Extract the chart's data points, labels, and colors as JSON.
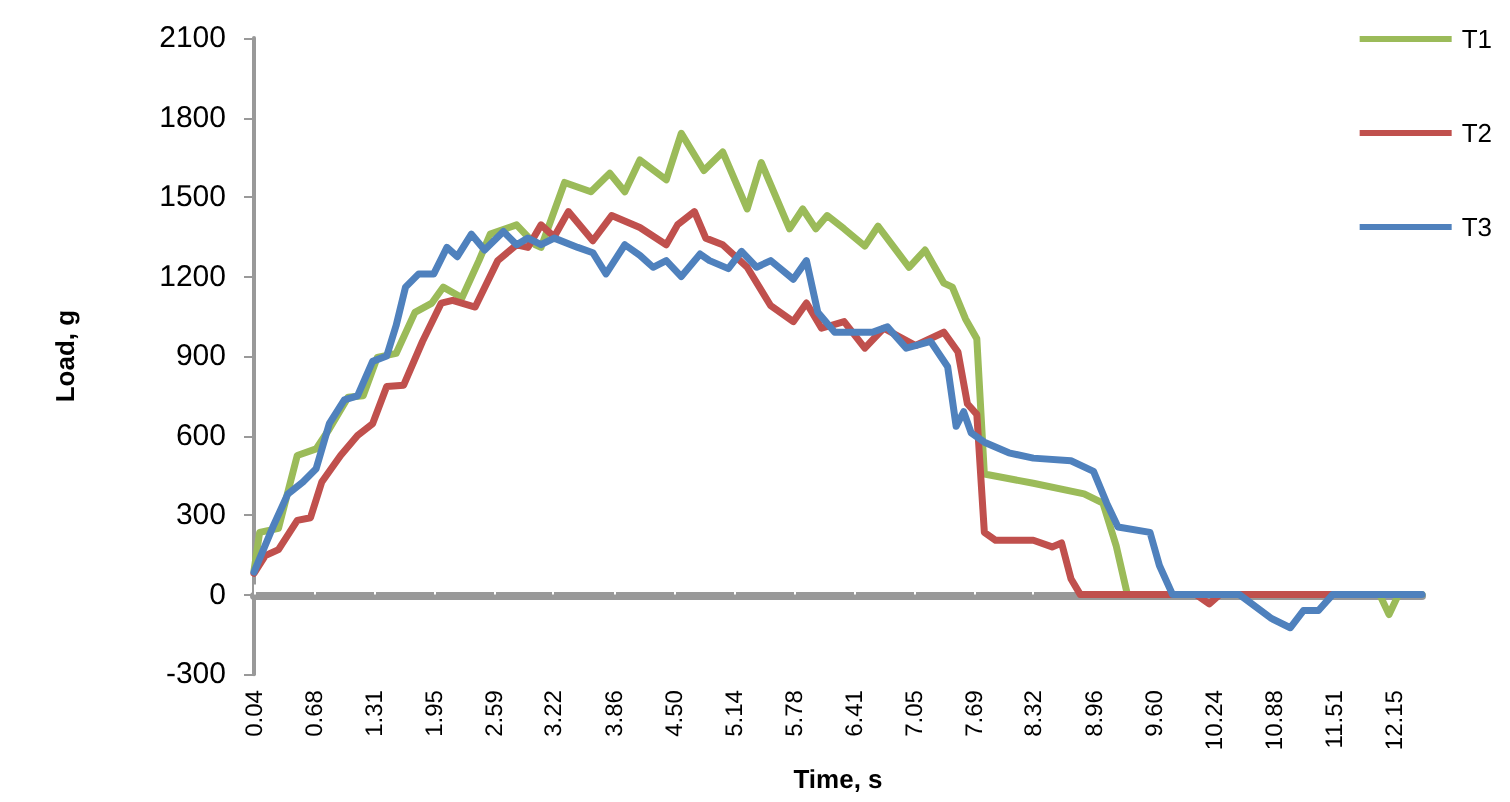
{
  "chart_data": {
    "type": "line",
    "xlabel": "Time, s",
    "ylabel": "Load, g",
    "xlim": [
      0.04,
      12.45
    ],
    "ylim": [
      -300,
      2100
    ],
    "xticks": [
      0.04,
      0.68,
      1.31,
      1.95,
      2.59,
      3.22,
      3.86,
      {
        "value": 4.5,
        "label": "4.50"
      },
      5.14,
      5.78,
      6.41,
      7.05,
      7.69,
      8.32,
      8.96,
      {
        "value": 9.6,
        "label": "9.60"
      },
      10.24,
      10.88,
      11.51,
      12.15
    ],
    "yticks": [
      -300,
      0,
      300,
      600,
      900,
      1200,
      1500,
      1800,
      2100
    ],
    "legend": "right",
    "marker": "none",
    "line_style": "solid",
    "series": [
      {
        "name": "T1",
        "color": "#9bbb59",
        "x": [
          0.04,
          0.1,
          0.3,
          0.5,
          0.7,
          0.84,
          1.04,
          1.2,
          1.35,
          1.55,
          1.75,
          1.93,
          2.05,
          2.25,
          2.43,
          2.55,
          2.83,
          3.03,
          3.09,
          3.34,
          3.62,
          3.82,
          3.98,
          4.14,
          4.42,
          4.58,
          4.82,
          5.02,
          5.28,
          5.43,
          5.73,
          5.87,
          6.01,
          6.13,
          6.31,
          6.53,
          6.67,
          7.0,
          7.17,
          7.37,
          7.46,
          7.6,
          7.72,
          7.8,
          8.32,
          8.86,
          9.06,
          9.2,
          9.32,
          12.0,
          12.1,
          12.2,
          12.45
        ],
        "values": [
          90,
          235,
          250,
          525,
          550,
          625,
          745,
          750,
          895,
          910,
          1065,
          1100,
          1160,
          1120,
          1260,
          1360,
          1395,
          1320,
          1310,
          1555,
          1520,
          1590,
          1520,
          1640,
          1565,
          1740,
          1600,
          1670,
          1455,
          1630,
          1380,
          1455,
          1380,
          1430,
          1380,
          1315,
          1390,
          1235,
          1300,
          1175,
          1160,
          1040,
          965,
          455,
          420,
          380,
          345,
          185,
          0,
          0,
          -75,
          0,
          0
        ]
      },
      {
        "name": "T2",
        "color": "#c0504d",
        "x": [
          0.04,
          0.16,
          0.3,
          0.5,
          0.64,
          0.76,
          0.96,
          1.14,
          1.3,
          1.45,
          1.63,
          1.83,
          2.03,
          2.15,
          2.39,
          2.63,
          2.83,
          2.95,
          3.09,
          3.23,
          3.38,
          3.64,
          3.84,
          4.14,
          4.42,
          4.54,
          4.72,
          4.84,
          5.02,
          5.28,
          5.53,
          5.77,
          5.91,
          6.07,
          6.31,
          6.53,
          6.73,
          7.07,
          7.37,
          7.52,
          7.62,
          7.72,
          7.8,
          7.92,
          8.32,
          8.52,
          8.62,
          8.72,
          8.82,
          10.05,
          10.19,
          10.3,
          11.8
        ],
        "values": [
          80,
          147,
          170,
          280,
          290,
          425,
          525,
          600,
          645,
          785,
          790,
          955,
          1100,
          1110,
          1085,
          1260,
          1320,
          1310,
          1395,
          1350,
          1445,
          1335,
          1430,
          1385,
          1320,
          1395,
          1445,
          1345,
          1320,
          1235,
          1090,
          1030,
          1100,
          1005,
          1030,
          930,
          1005,
          940,
          990,
          915,
          720,
          680,
          235,
          205,
          205,
          180,
          195,
          60,
          0,
          0,
          -35,
          0,
          0
        ]
      },
      {
        "name": "T3",
        "color": "#4f81bd",
        "x": [
          0.04,
          0.24,
          0.4,
          0.56,
          0.7,
          0.84,
          1.0,
          1.14,
          1.3,
          1.45,
          1.55,
          1.65,
          1.79,
          1.95,
          2.09,
          2.2,
          2.35,
          2.49,
          2.69,
          2.83,
          2.95,
          3.09,
          3.23,
          3.48,
          3.64,
          3.78,
          3.98,
          4.14,
          4.28,
          4.42,
          4.58,
          4.78,
          4.88,
          5.08,
          5.22,
          5.38,
          5.53,
          5.77,
          5.91,
          6.03,
          6.21,
          6.61,
          6.77,
          6.97,
          7.23,
          7.41,
          7.5,
          7.58,
          7.66,
          7.8,
          8.06,
          8.32,
          8.72,
          8.96,
          9.1,
          9.22,
          9.56,
          9.66,
          9.8,
          10.51,
          10.85,
          11.05,
          11.19,
          11.35,
          11.5,
          12.45
        ],
        "values": [
          85,
          255,
          380,
          425,
          475,
          645,
          735,
          750,
          880,
          900,
          1015,
          1160,
          1210,
          1210,
          1310,
          1275,
          1360,
          1300,
          1370,
          1320,
          1345,
          1320,
          1345,
          1310,
          1290,
          1210,
          1320,
          1280,
          1235,
          1260,
          1200,
          1285,
          1260,
          1230,
          1295,
          1235,
          1260,
          1190,
          1260,
          1065,
          990,
          990,
          1010,
          930,
          955,
          860,
          635,
          690,
          610,
          575,
          535,
          515,
          505,
          465,
          345,
          255,
          235,
          110,
          0,
          0,
          -90,
          -125,
          -60,
          -60,
          0,
          0
        ]
      }
    ]
  }
}
